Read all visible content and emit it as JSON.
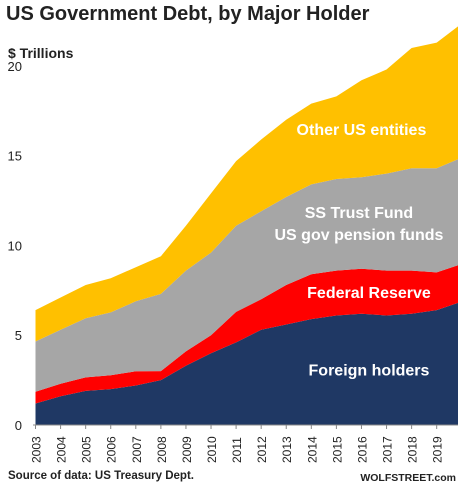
{
  "chart_data": {
    "type": "area",
    "title": "US Government Debt, by Major Holder",
    "ylabel": "$ Trillions",
    "xlabel": "",
    "ylim": [
      0,
      22
    ],
    "yticks": [
      0,
      5,
      10,
      15,
      20
    ],
    "x": [
      2003,
      2004,
      2005,
      2006,
      2007,
      2008,
      2009,
      2010,
      2011,
      2012,
      2013,
      2014,
      2015,
      2016,
      2017,
      2018,
      2019,
      2019.85
    ],
    "xtick_labels": [
      "2003",
      "2004",
      "2005",
      "2006",
      "2007",
      "2008",
      "2009",
      "2010",
      "2011",
      "2012",
      "2013",
      "2014",
      "2015",
      "2016",
      "2017",
      "2018",
      "2019"
    ],
    "stacking": "cumulative",
    "series": [
      {
        "name": "Foreign holders",
        "color": "#1f3864",
        "values": [
          1.2,
          1.6,
          1.9,
          2.0,
          2.2,
          2.5,
          3.3,
          4.0,
          4.6,
          5.3,
          5.6,
          5.9,
          6.1,
          6.2,
          6.1,
          6.2,
          6.4,
          6.8
        ]
      },
      {
        "name": "Federal Reserve",
        "color": "#ff0000",
        "values": [
          0.65,
          0.7,
          0.75,
          0.77,
          0.79,
          0.5,
          0.8,
          1.0,
          1.7,
          1.7,
          2.2,
          2.5,
          2.5,
          2.5,
          2.5,
          2.4,
          2.1,
          2.1
        ]
      },
      {
        "name": "SS Trust Fund\nUS gov pension funds",
        "color": "#a6a6a6",
        "values": [
          2.8,
          3.0,
          3.3,
          3.5,
          3.9,
          4.3,
          4.5,
          4.6,
          4.8,
          4.9,
          4.9,
          5.0,
          5.1,
          5.1,
          5.4,
          5.7,
          5.8,
          5.9
        ]
      },
      {
        "name": "Other US entities",
        "color": "#ffc000",
        "values": [
          1.75,
          1.8,
          1.85,
          1.9,
          1.9,
          2.1,
          2.5,
          3.3,
          3.6,
          4.0,
          4.3,
          4.5,
          4.6,
          5.4,
          5.8,
          6.7,
          7.0,
          7.4
        ]
      }
    ],
    "grid": false,
    "legend": "inline labels"
  },
  "footer": {
    "source": "Source of data: US Treasury Dept.",
    "brand": "WOLFSTREET.com"
  }
}
